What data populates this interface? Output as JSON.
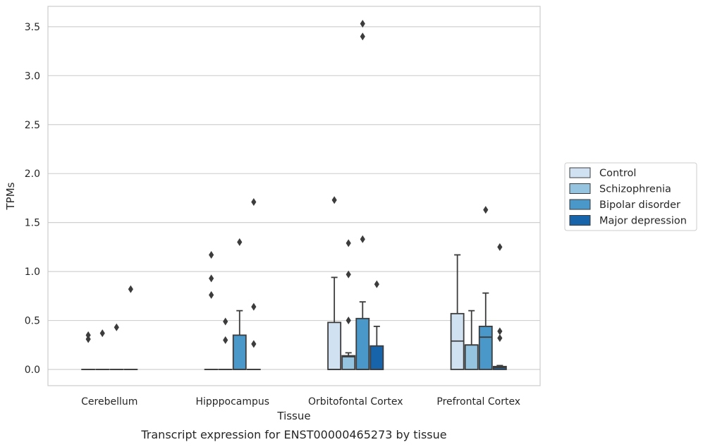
{
  "caption": "Transcript expression for ENST00000465273 by tissue",
  "chart_data": {
    "type": "box",
    "xlabel": "Tissue",
    "ylabel": "TPMs",
    "ylim": [
      -0.17,
      3.72
    ],
    "yticks": [
      "0.0",
      "0.5",
      "1.0",
      "1.5",
      "2.0",
      "2.5",
      "3.0",
      "3.5"
    ],
    "ytick_values": [
      0,
      0.5,
      1.0,
      1.5,
      2.0,
      2.5,
      3.0,
      3.5
    ],
    "grid": "horizontal",
    "legend_placement": "center-right, outside plot",
    "categories": [
      "Cerebellum",
      "Hipppocampus",
      "Orbitofontal Cortex",
      "Prefrontal Cortex"
    ],
    "series": [
      {
        "name": "Control",
        "color": "#d0e1f2",
        "boxes": [
          {
            "min": 0,
            "q1": 0,
            "median": 0,
            "q3": 0,
            "max": 0,
            "outliers": [
              0.31,
              0.35
            ]
          },
          {
            "min": 0,
            "q1": 0,
            "median": 0,
            "q3": 0,
            "max": 0,
            "outliers": [
              0.76,
              0.93,
              1.17
            ]
          },
          {
            "min": 0,
            "q1": 0,
            "median": 0,
            "q3": 0.48,
            "max": 0.94,
            "outliers": [
              1.73
            ]
          },
          {
            "min": 0,
            "q1": 0,
            "median": 0.29,
            "q3": 0.57,
            "max": 1.17,
            "outliers": []
          }
        ]
      },
      {
        "name": "Schizophrenia",
        "color": "#94c4df",
        "boxes": [
          {
            "min": 0,
            "q1": 0,
            "median": 0,
            "q3": 0,
            "max": 0,
            "outliers": [
              0.37
            ]
          },
          {
            "min": 0,
            "q1": 0,
            "median": 0,
            "q3": 0,
            "max": 0,
            "outliers": [
              0.3,
              0.49
            ]
          },
          {
            "min": 0,
            "q1": 0,
            "median": 0.13,
            "q3": 0.14,
            "max": 0.17,
            "outliers": [
              0.5,
              0.97,
              1.29
            ]
          },
          {
            "min": 0,
            "q1": 0,
            "median": 0.25,
            "q3": 0.25,
            "max": 0.6,
            "outliers": []
          }
        ]
      },
      {
        "name": "Bipolar disorder",
        "color": "#4a98c9",
        "boxes": [
          {
            "min": 0,
            "q1": 0,
            "median": 0,
            "q3": 0,
            "max": 0,
            "outliers": [
              0.43
            ]
          },
          {
            "min": 0,
            "q1": 0,
            "median": 0,
            "q3": 0.35,
            "max": 0.6,
            "outliers": [
              1.3
            ]
          },
          {
            "min": 0,
            "q1": 0,
            "median": 0,
            "q3": 0.52,
            "max": 0.69,
            "outliers": [
              1.33,
              3.4,
              3.53
            ]
          },
          {
            "min": 0,
            "q1": 0,
            "median": 0.33,
            "q3": 0.44,
            "max": 0.78,
            "outliers": [
              1.63
            ]
          }
        ]
      },
      {
        "name": "Major depression",
        "color": "#1764ab",
        "boxes": [
          {
            "min": 0,
            "q1": 0,
            "median": 0,
            "q3": 0,
            "max": 0,
            "outliers": [
              0.82
            ]
          },
          {
            "min": 0,
            "q1": 0,
            "median": 0,
            "q3": 0,
            "max": 0,
            "outliers": [
              0.26,
              0.64,
              1.71
            ]
          },
          {
            "min": 0,
            "q1": 0,
            "median": 0,
            "q3": 0.24,
            "max": 0.44,
            "outliers": [
              0.87
            ]
          },
          {
            "min": 0,
            "q1": 0,
            "median": 0.02,
            "q3": 0.03,
            "max": 0.04,
            "outliers": [
              0.32,
              0.39,
              1.25
            ]
          }
        ]
      }
    ]
  }
}
